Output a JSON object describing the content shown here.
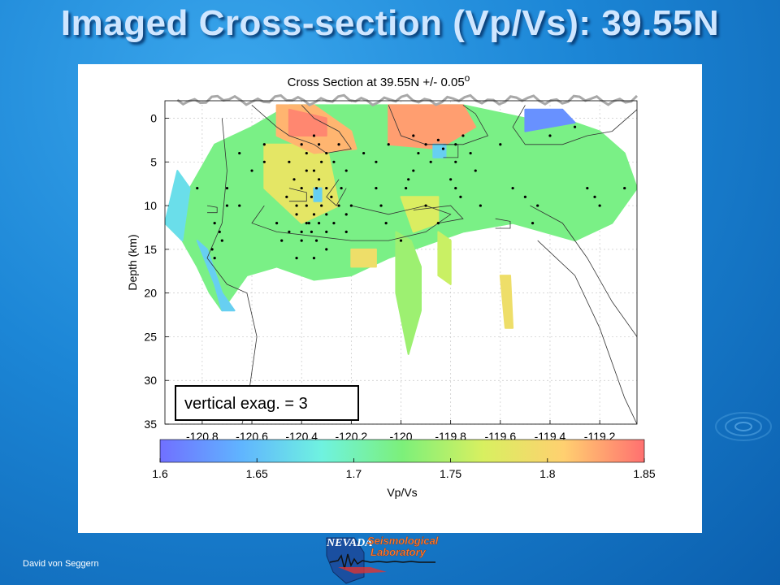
{
  "slide": {
    "title": "Imaged Cross-section (Vp/Vs): 39.55N",
    "author": "David von Seggern",
    "logo_text_1": "NEVADA",
    "logo_text_2": "Seismological",
    "logo_text_3": "Laboratory"
  },
  "chart_data": {
    "type": "heatmap",
    "title": "Cross Section at 39.55N +/- 0.05",
    "title_suffix": "o",
    "ylabel": "Depth (km)",
    "xlim": [
      -120.95,
      -119.05
    ],
    "ylim": [
      -2,
      35
    ],
    "x_ticks": [
      -120.8,
      -120.6,
      -120.4,
      -120.2,
      -120,
      -119.8,
      -119.6,
      -119.4,
      -119.2
    ],
    "y_ticks": [
      0,
      5,
      10,
      15,
      20,
      25,
      30,
      35
    ],
    "grid": true,
    "annotation": "vertical exag. = 3",
    "colorbar": {
      "label": "Vp/Vs",
      "range": [
        1.6,
        1.85
      ],
      "ticks": [
        1.6,
        1.65,
        1.7,
        1.75,
        1.8,
        1.85
      ],
      "colors": [
        "#7070ff",
        "#60b4ff",
        "#6ff2e0",
        "#7cf07a",
        "#d8f060",
        "#ffd070",
        "#ff7070"
      ]
    },
    "regions": [
      {
        "value": 1.72,
        "polygon": [
          [
            -120.85,
            8
          ],
          [
            -120.75,
            3
          ],
          [
            -120.6,
            1
          ],
          [
            -120.45,
            -1.5
          ],
          [
            -120.2,
            -1.5
          ],
          [
            -120.0,
            -1.5
          ],
          [
            -119.75,
            -1.5
          ],
          [
            -119.5,
            0
          ],
          [
            -119.3,
            0.5
          ],
          [
            -119.2,
            1.5
          ],
          [
            -119.1,
            4
          ],
          [
            -119.05,
            8
          ],
          [
            -119.15,
            12
          ],
          [
            -119.3,
            14
          ],
          [
            -119.55,
            12
          ],
          [
            -119.75,
            13
          ],
          [
            -119.9,
            14.5
          ],
          [
            -120.05,
            16
          ],
          [
            -120.2,
            18
          ],
          [
            -120.35,
            18.5
          ],
          [
            -120.5,
            17
          ],
          [
            -120.62,
            18
          ],
          [
            -120.72,
            22
          ],
          [
            -120.77,
            20
          ],
          [
            -120.82,
            17
          ],
          [
            -120.88,
            14
          ],
          [
            -120.95,
            12
          ]
        ]
      },
      {
        "value": 1.67,
        "polygon": [
          [
            -120.95,
            12
          ],
          [
            -120.9,
            6
          ],
          [
            -120.85,
            8
          ],
          [
            -120.88,
            14
          ]
        ]
      },
      {
        "value": 1.74,
        "polygon": [
          [
            -120.02,
            13
          ],
          [
            -119.96,
            14
          ],
          [
            -119.92,
            17
          ],
          [
            -119.92,
            22
          ],
          [
            -119.97,
            27
          ],
          [
            -120.02,
            20
          ]
        ]
      },
      {
        "value": 1.76,
        "polygon": [
          [
            -119.85,
            13
          ],
          [
            -119.8,
            14
          ],
          [
            -119.8,
            19
          ],
          [
            -119.85,
            18
          ]
        ]
      },
      {
        "value": 1.79,
        "polygon": [
          [
            -119.6,
            18
          ],
          [
            -119.56,
            18
          ],
          [
            -119.55,
            24
          ],
          [
            -119.58,
            24
          ]
        ]
      },
      {
        "value": 1.66,
        "polygon": [
          [
            -120.82,
            14
          ],
          [
            -120.78,
            15
          ],
          [
            -120.72,
            20
          ],
          [
            -120.67,
            22
          ],
          [
            -120.72,
            22
          ],
          [
            -120.75,
            19
          ]
        ]
      },
      {
        "value": 1.62,
        "polygon": [
          [
            -119.5,
            -1
          ],
          [
            -119.35,
            -1
          ],
          [
            -119.3,
            0.5
          ],
          [
            -119.5,
            1.5
          ]
        ]
      },
      {
        "value": 1.78,
        "polygon": [
          [
            -120.55,
            3
          ],
          [
            -120.3,
            3
          ],
          [
            -120.25,
            10
          ],
          [
            -120.4,
            12
          ],
          [
            -120.55,
            8
          ]
        ]
      },
      {
        "value": 1.82,
        "polygon": [
          [
            -120.5,
            -1.5
          ],
          [
            -120.35,
            -1.5
          ],
          [
            -120.2,
            1.5
          ],
          [
            -120.18,
            3.5
          ],
          [
            -120.35,
            4
          ],
          [
            -120.5,
            2
          ]
        ]
      },
      {
        "value": 1.84,
        "polygon": [
          [
            -120.45,
            -1
          ],
          [
            -120.3,
            0
          ],
          [
            -120.3,
            2
          ],
          [
            -120.45,
            2
          ]
        ]
      },
      {
        "value": 1.83,
        "polygon": [
          [
            -120.05,
            -1.5
          ],
          [
            -119.75,
            -1.5
          ],
          [
            -119.7,
            1
          ],
          [
            -119.85,
            3.5
          ],
          [
            -120.05,
            3
          ]
        ]
      },
      {
        "value": 1.66,
        "polygon": [
          [
            -119.87,
            3
          ],
          [
            -119.82,
            3
          ],
          [
            -119.82,
            4.5
          ],
          [
            -119.87,
            4.5
          ]
        ]
      },
      {
        "value": 1.66,
        "polygon": [
          [
            -120.35,
            8
          ],
          [
            -120.32,
            8
          ],
          [
            -120.32,
            9.5
          ],
          [
            -120.35,
            9.5
          ]
        ]
      },
      {
        "value": 1.77,
        "polygon": [
          [
            -120.0,
            9
          ],
          [
            -119.85,
            9
          ],
          [
            -119.85,
            12
          ],
          [
            -119.95,
            13
          ]
        ]
      },
      {
        "value": 1.79,
        "polygon": [
          [
            -120.2,
            15
          ],
          [
            -120.1,
            15
          ],
          [
            -120.1,
            17
          ],
          [
            -120.2,
            17
          ]
        ]
      }
    ],
    "earthquakes": [
      [
        -120.35,
        2
      ],
      [
        -120.33,
        3
      ],
      [
        -120.3,
        4
      ],
      [
        -120.32,
        5
      ],
      [
        -120.35,
        6
      ],
      [
        -120.33,
        7
      ],
      [
        -120.3,
        8
      ],
      [
        -120.36,
        9
      ],
      [
        -120.38,
        10
      ],
      [
        -120.35,
        11
      ],
      [
        -120.37,
        12
      ],
      [
        -120.4,
        13
      ],
      [
        -120.33,
        12
      ],
      [
        -120.3,
        11
      ],
      [
        -120.28,
        9
      ],
      [
        -120.32,
        10
      ],
      [
        -120.34,
        8
      ],
      [
        -120.38,
        6
      ],
      [
        -120.4,
        8
      ],
      [
        -120.42,
        10
      ],
      [
        -120.42,
        11
      ],
      [
        -120.38,
        12
      ],
      [
        -120.36,
        13
      ],
      [
        -120.34,
        14
      ],
      [
        -120.3,
        13
      ],
      [
        -120.27,
        12
      ],
      [
        -120.25,
        10
      ],
      [
        -120.24,
        8
      ],
      [
        -120.22,
        6
      ],
      [
        -120.27,
        5
      ],
      [
        -120.25,
        3
      ],
      [
        -120.38,
        4
      ],
      [
        -120.4,
        3
      ],
      [
        -120.45,
        5
      ],
      [
        -120.43,
        7
      ],
      [
        -120.46,
        9
      ],
      [
        -120.4,
        14
      ],
      [
        -120.42,
        16
      ],
      [
        -120.35,
        16
      ],
      [
        -120.3,
        15
      ],
      [
        -120.22,
        11
      ],
      [
        -120.2,
        10
      ],
      [
        -120.22,
        13
      ],
      [
        -120.15,
        4
      ],
      [
        -120.1,
        5
      ],
      [
        -120.05,
        3
      ],
      [
        -119.95,
        2
      ],
      [
        -119.9,
        3
      ],
      [
        -119.85,
        2.5
      ],
      [
        -119.83,
        3.5
      ],
      [
        -119.78,
        3
      ],
      [
        -119.75,
        2
      ],
      [
        -119.72,
        4
      ],
      [
        -119.78,
        5
      ],
      [
        -119.95,
        6
      ],
      [
        -119.97,
        7
      ],
      [
        -119.98,
        8
      ],
      [
        -119.93,
        4
      ],
      [
        -119.88,
        5
      ],
      [
        -119.8,
        7
      ],
      [
        -119.78,
        8
      ],
      [
        -119.76,
        9
      ],
      [
        -119.7,
        6
      ],
      [
        -119.68,
        10
      ],
      [
        -119.55,
        8
      ],
      [
        -119.5,
        9
      ],
      [
        -119.45,
        10
      ],
      [
        -119.47,
        12
      ],
      [
        -119.25,
        8
      ],
      [
        -119.22,
        9
      ],
      [
        -119.2,
        10
      ],
      [
        -119.1,
        8
      ],
      [
        -120.82,
        8
      ],
      [
        -120.7,
        10
      ],
      [
        -120.6,
        6
      ],
      [
        -120.55,
        5
      ],
      [
        -120.55,
        3
      ],
      [
        -120.65,
        4
      ],
      [
        -120.75,
        12
      ],
      [
        -120.73,
        13
      ],
      [
        -120.72,
        14
      ],
      [
        -120.76,
        15
      ],
      [
        -120.75,
        16
      ],
      [
        -120.7,
        8
      ],
      [
        -120.65,
        10
      ],
      [
        -120.5,
        12
      ],
      [
        -120.48,
        14
      ],
      [
        -120.45,
        13
      ],
      [
        -120.1,
        8
      ],
      [
        -120.08,
        10
      ],
      [
        -120.06,
        12
      ],
      [
        -119.9,
        10
      ],
      [
        -119.6,
        3
      ],
      [
        -119.4,
        2
      ],
      [
        -119.3,
        1
      ],
      [
        -120.0,
        14
      ],
      [
        -119.85,
        12
      ]
    ],
    "contours": [
      [
        [
          -120.6,
          -1.5
        ],
        [
          -120.5,
          1
        ],
        [
          -120.45,
          2
        ],
        [
          -120.35,
          3
        ],
        [
          -120.3,
          4
        ],
        [
          -120.2,
          3.5
        ],
        [
          -120.25,
          1.5
        ],
        [
          -120.35,
          0
        ],
        [
          -120.4,
          -1.5
        ]
      ],
      [
        [
          -120.05,
          -1.5
        ],
        [
          -120.0,
          2
        ],
        [
          -119.9,
          3
        ],
        [
          -119.75,
          3
        ],
        [
          -119.65,
          2
        ],
        [
          -119.7,
          -0.5
        ],
        [
          -119.75,
          -1.5
        ]
      ],
      [
        [
          -120.55,
          10
        ],
        [
          -120.6,
          12
        ],
        [
          -120.5,
          13
        ],
        [
          -120.35,
          13.5
        ],
        [
          -120.2,
          14
        ],
        [
          -120.05,
          14
        ],
        [
          -119.9,
          13
        ],
        [
          -119.85,
          12
        ],
        [
          -119.8,
          11
        ],
        [
          -119.9,
          10
        ],
        [
          -120.05,
          11
        ],
        [
          -120.2,
          10
        ]
      ],
      [
        [
          -120.25,
          7
        ],
        [
          -120.3,
          9
        ],
        [
          -120.26,
          10
        ],
        [
          -120.22,
          8
        ]
      ],
      [
        [
          -120.78,
          10
        ],
        [
          -120.74,
          10.2
        ],
        [
          -120.74,
          10.8
        ],
        [
          -120.78,
          10.8
        ]
      ],
      [
        [
          -119.83,
          3
        ],
        [
          -119.77,
          3
        ],
        [
          -119.77,
          4.5
        ],
        [
          -119.83,
          4.5
        ]
      ],
      [
        [
          -119.95,
          10.5
        ],
        [
          -119.8,
          10
        ],
        [
          -119.75,
          11.5
        ],
        [
          -119.85,
          12
        ]
      ],
      [
        [
          -120.45,
          8
        ],
        [
          -120.38,
          8.5
        ],
        [
          -120.38,
          9.5
        ],
        [
          -120.45,
          9.5
        ]
      ],
      [
        [
          -119.62,
          11.5
        ],
        [
          -119.56,
          11.8
        ],
        [
          -119.56,
          12.6
        ],
        [
          -119.62,
          12.6
        ]
      ],
      [
        [
          -120.72,
          0
        ],
        [
          -120.7,
          6
        ],
        [
          -120.72,
          12
        ],
        [
          -120.78,
          16
        ],
        [
          -120.7,
          19
        ],
        [
          -120.62,
          20
        ],
        [
          -120.58,
          25
        ],
        [
          -120.62,
          33
        ],
        [
          -120.64,
          35
        ]
      ],
      [
        [
          -119.5,
          -1.5
        ],
        [
          -119.55,
          1
        ],
        [
          -119.5,
          3
        ],
        [
          -119.35,
          3
        ],
        [
          -119.25,
          2
        ],
        [
          -119.15,
          1.5
        ],
        [
          -119.05,
          -1
        ]
      ],
      [
        [
          -119.48,
          10
        ],
        [
          -119.35,
          12
        ],
        [
          -119.25,
          16
        ],
        [
          -119.15,
          21
        ],
        [
          -119.05,
          25
        ]
      ],
      [
        [
          -119.45,
          14
        ],
        [
          -119.3,
          18
        ],
        [
          -119.2,
          24
        ],
        [
          -119.1,
          32
        ],
        [
          -119.05,
          35
        ]
      ]
    ]
  }
}
